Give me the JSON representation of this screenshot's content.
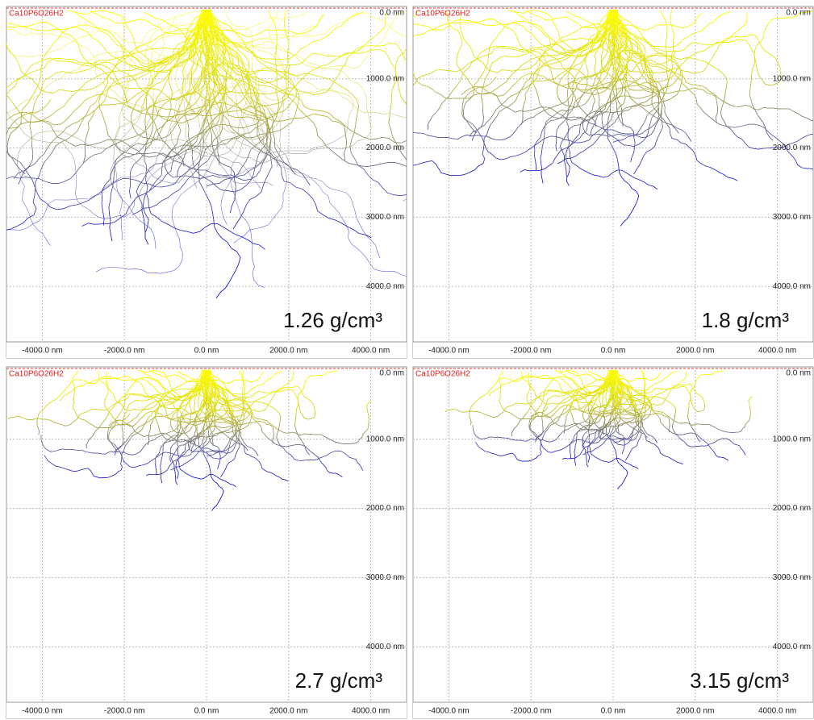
{
  "axes": {
    "x_labels": [
      "-4000.0 nm",
      "-2000.0 nm",
      "0.0 nm",
      "2000.0 nm",
      "4000.0 nm"
    ],
    "y_labels": [
      "0.0 nm",
      "1000.0 nm",
      "2000.0 nm",
      "3000.0 nm",
      "4000.0 nm"
    ]
  },
  "panels": [
    {
      "sample": "Ca10P6O26H2",
      "density": "1.26 g/cm³"
    },
    {
      "sample": "Ca10P6O26H2",
      "density": "1.8 g/cm³"
    },
    {
      "sample": "Ca10P6O26H2",
      "density": "2.7 g/cm³"
    },
    {
      "sample": "Ca10P6O26H2",
      "density": "3.15 g/cm³"
    }
  ]
}
